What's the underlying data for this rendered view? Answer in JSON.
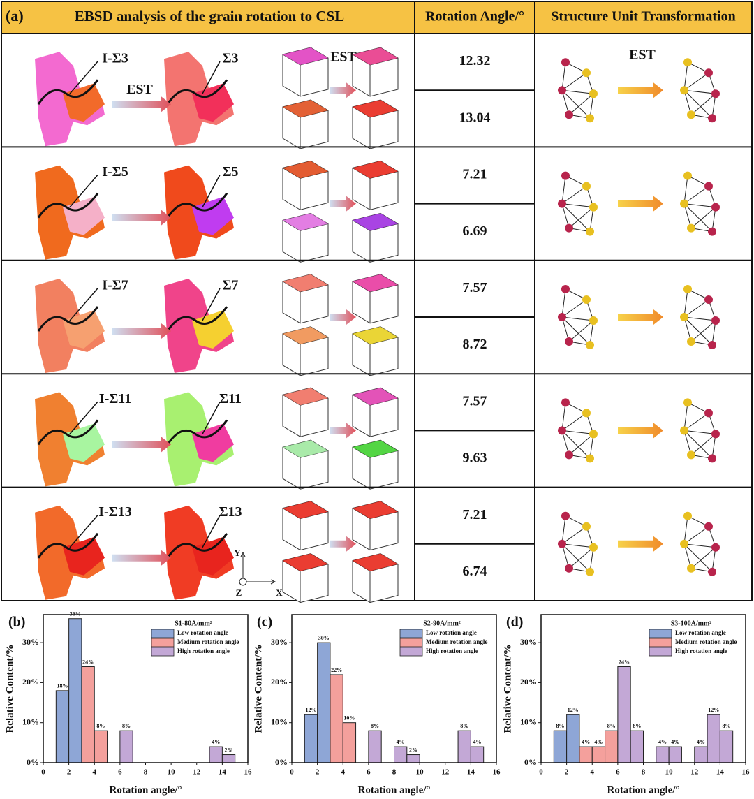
{
  "panel_a": {
    "label": "(a)",
    "headers": [
      "EBSD analysis of the grain rotation to CSL",
      "Rotation Angle/°",
      "Structure Unit Transformation"
    ],
    "rows": [
      {
        "initial": "I-Σ3",
        "final": "Σ3",
        "ebsd_arrow": "EST",
        "crystal_arrow": "EST",
        "structure_arrow": "EST",
        "angles": [
          12.32,
          13.04
        ]
      },
      {
        "initial": "I-Σ5",
        "final": "Σ5",
        "angles": [
          7.21,
          6.69
        ]
      },
      {
        "initial": "I-Σ7",
        "final": "Σ7",
        "angles": [
          7.57,
          8.72
        ]
      },
      {
        "initial": "I-Σ11",
        "final": "Σ11",
        "angles": [
          7.57,
          9.63
        ]
      },
      {
        "initial": "I-Σ13",
        "final": "Σ13",
        "angles": [
          7.21,
          6.74
        ]
      }
    ],
    "axes": [
      "Y",
      "Z",
      "X"
    ]
  },
  "chart_data": [
    {
      "type": "bar",
      "panel": "(b)",
      "title": "S1-80A/mm²",
      "x_label": "Rotation angle/°",
      "y_label": "Relative Content/%",
      "xlim": [
        0,
        16
      ],
      "xticks": [
        0,
        2,
        4,
        6,
        8,
        10,
        12,
        14,
        16
      ],
      "ylim": [
        0,
        37
      ],
      "yticks": [
        {
          "value": 0,
          "label": "0%"
        },
        {
          "value": 10,
          "label": "10%"
        },
        {
          "value": 20,
          "label": "20%"
        },
        {
          "value": 30,
          "label": "30%"
        }
      ],
      "series": [
        {
          "name": "Low rotation angle",
          "color": "#8ea6d6",
          "x": [
            1.5,
            2.5
          ],
          "values": [
            18,
            36
          ],
          "value_labels": [
            "18%",
            "36%"
          ]
        },
        {
          "name": "Medium rotation angle",
          "color": "#f4a09c",
          "x": [
            3.5,
            4.5
          ],
          "values": [
            24,
            8
          ],
          "value_labels": [
            "24%",
            "8%"
          ]
        },
        {
          "name": "High rotation angle",
          "color": "#c3a8d6",
          "x": [
            6.5,
            13.5,
            14.5
          ],
          "values": [
            8,
            4,
            2
          ],
          "value_labels": [
            "8%",
            "4%",
            "2%"
          ]
        }
      ]
    },
    {
      "type": "bar",
      "panel": "(c)",
      "title": "S2-90A/mm²",
      "x_label": "Rotation angle/°",
      "y_label": "Relative Content/%",
      "xlim": [
        0,
        16
      ],
      "xticks": [
        0,
        2,
        4,
        6,
        8,
        10,
        12,
        14,
        16
      ],
      "ylim": [
        0,
        37
      ],
      "yticks": [
        {
          "value": 0,
          "label": "0%"
        },
        {
          "value": 10,
          "label": "10%"
        },
        {
          "value": 20,
          "label": "20%"
        },
        {
          "value": 30,
          "label": "30%"
        }
      ],
      "series": [
        {
          "name": "Low rotation angle",
          "color": "#8ea6d6",
          "x": [
            1.5,
            2.5
          ],
          "values": [
            12,
            30
          ],
          "value_labels": [
            "12%",
            "30%"
          ]
        },
        {
          "name": "Medium rotation angle",
          "color": "#f4a09c",
          "x": [
            3.5,
            4.5
          ],
          "values": [
            22,
            10
          ],
          "value_labels": [
            "22%",
            "10%"
          ]
        },
        {
          "name": "High rotation angle",
          "color": "#c3a8d6",
          "x": [
            6.5,
            8.5,
            9.5,
            13.5,
            14.5
          ],
          "values": [
            8,
            4,
            2,
            8,
            4
          ],
          "value_labels": [
            "8%",
            "4%",
            "2%",
            "8%",
            "4%"
          ]
        }
      ]
    },
    {
      "type": "bar",
      "panel": "(d)",
      "title": "S3-100A/mm²",
      "x_label": "Rotation angle/°",
      "y_label": "Relative Content/%",
      "xlim": [
        0,
        16
      ],
      "xticks": [
        0,
        2,
        4,
        6,
        8,
        10,
        12,
        14,
        16
      ],
      "ylim": [
        0,
        37
      ],
      "yticks": [
        {
          "value": 0,
          "label": "0%"
        },
        {
          "value": 10,
          "label": "10%"
        },
        {
          "value": 20,
          "label": "20%"
        },
        {
          "value": 30,
          "label": "30%"
        }
      ],
      "series": [
        {
          "name": "Low rotation angle",
          "color": "#8ea6d6",
          "x": [
            1.5,
            2.5
          ],
          "values": [
            8,
            12
          ],
          "value_labels": [
            "8%",
            "12%"
          ]
        },
        {
          "name": "Medium rotation angle",
          "color": "#f4a09c",
          "x": [
            3.5,
            4.5,
            5.5
          ],
          "values": [
            4,
            4,
            8
          ],
          "value_labels": [
            "4%",
            "4%",
            "8%"
          ]
        },
        {
          "name": "High rotation angle",
          "color": "#c3a8d6",
          "x": [
            6.5,
            7.5,
            9.5,
            10.5,
            12.5,
            13.5,
            14.5
          ],
          "values": [
            24,
            8,
            4,
            4,
            4,
            12,
            8
          ],
          "value_labels": [
            "24%",
            "8%",
            "4%",
            "4%",
            "4%",
            "12%",
            "8%"
          ]
        }
      ]
    }
  ]
}
